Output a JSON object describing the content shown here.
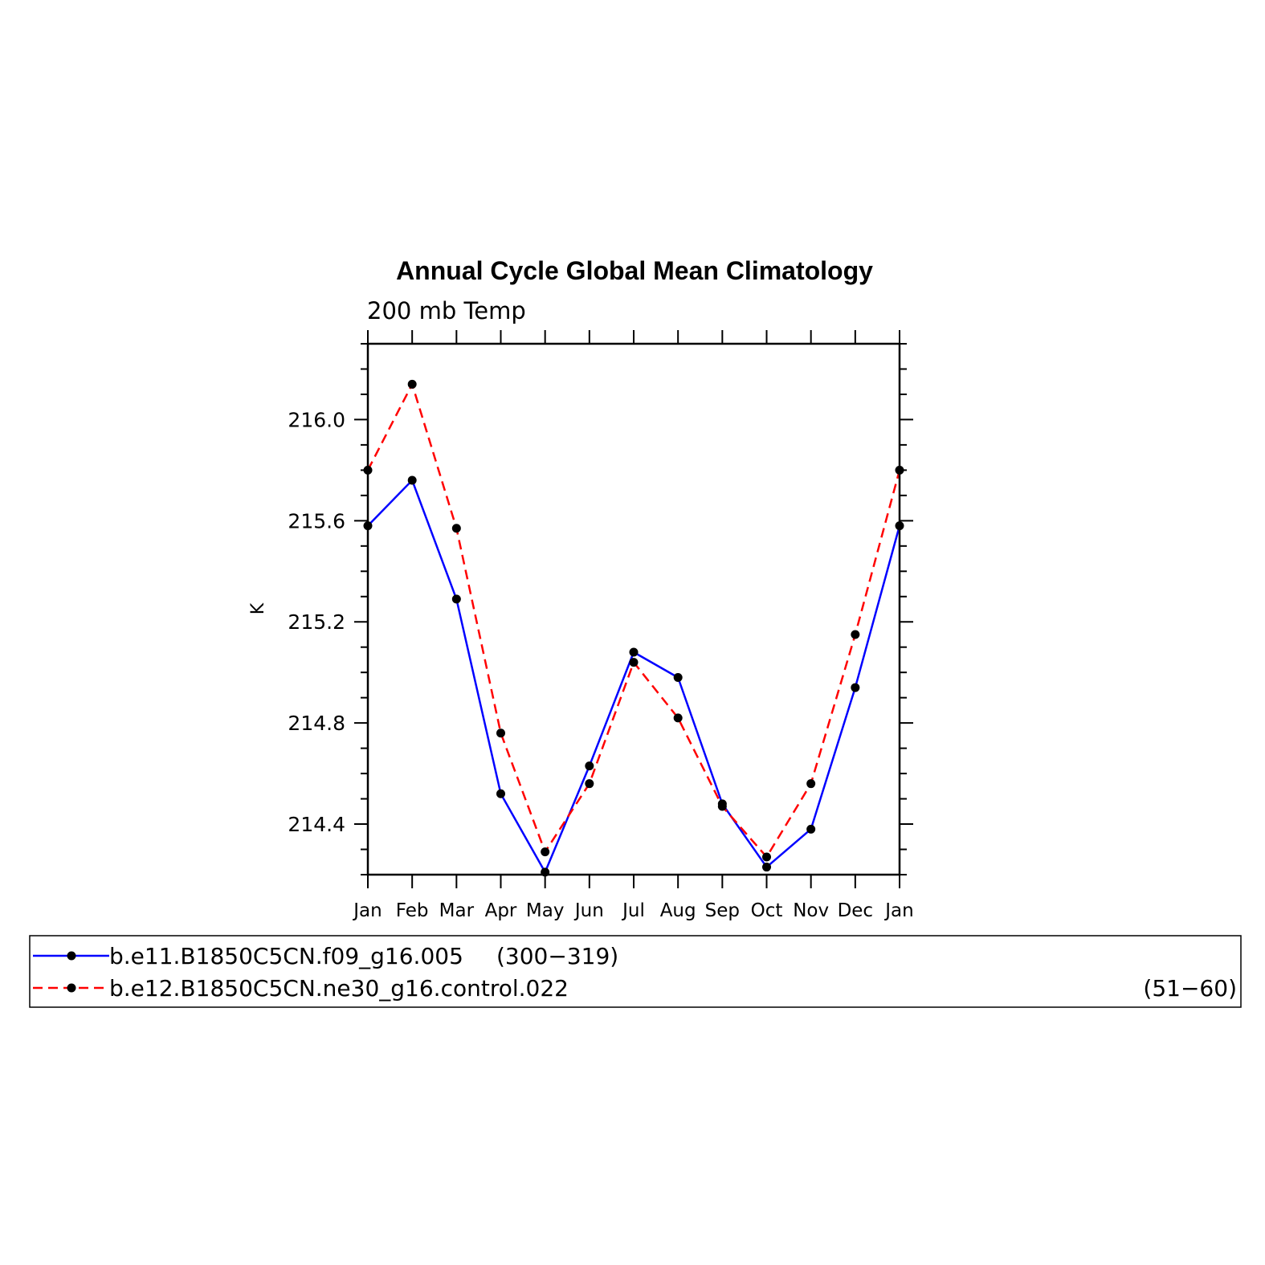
{
  "chart_data": {
    "type": "line",
    "title": "Annual Cycle Global Mean Climatology",
    "subtitle": "200 mb Temp",
    "xlabel": "",
    "ylabel": "K",
    "categories": [
      "Jan",
      "Feb",
      "Mar",
      "Apr",
      "May",
      "Jun",
      "Jul",
      "Aug",
      "Sep",
      "Oct",
      "Nov",
      "Dec",
      "Jan"
    ],
    "ylim": [
      214.2,
      216.3
    ],
    "yticks": [
      "214.4",
      "214.8",
      "215.2",
      "215.6",
      "216.0"
    ],
    "grid": false,
    "legend_position": "bottom",
    "series": [
      {
        "name": "b.e11.B1850C5CN.f09_g16.005",
        "years": "(300−319)",
        "color": "#0000ff",
        "dash": "solid",
        "values": [
          215.58,
          215.76,
          215.29,
          214.52,
          214.21,
          214.63,
          215.08,
          214.98,
          214.48,
          214.23,
          214.38,
          214.94,
          215.58
        ]
      },
      {
        "name": "b.e12.B1850C5CN.ne30_g16.control.022",
        "years": "(51−60)",
        "color": "#ff0000",
        "dash": "dashed",
        "values": [
          215.8,
          216.14,
          215.57,
          214.76,
          214.29,
          214.56,
          215.04,
          214.82,
          214.47,
          214.27,
          214.56,
          215.15,
          215.8
        ]
      }
    ]
  }
}
